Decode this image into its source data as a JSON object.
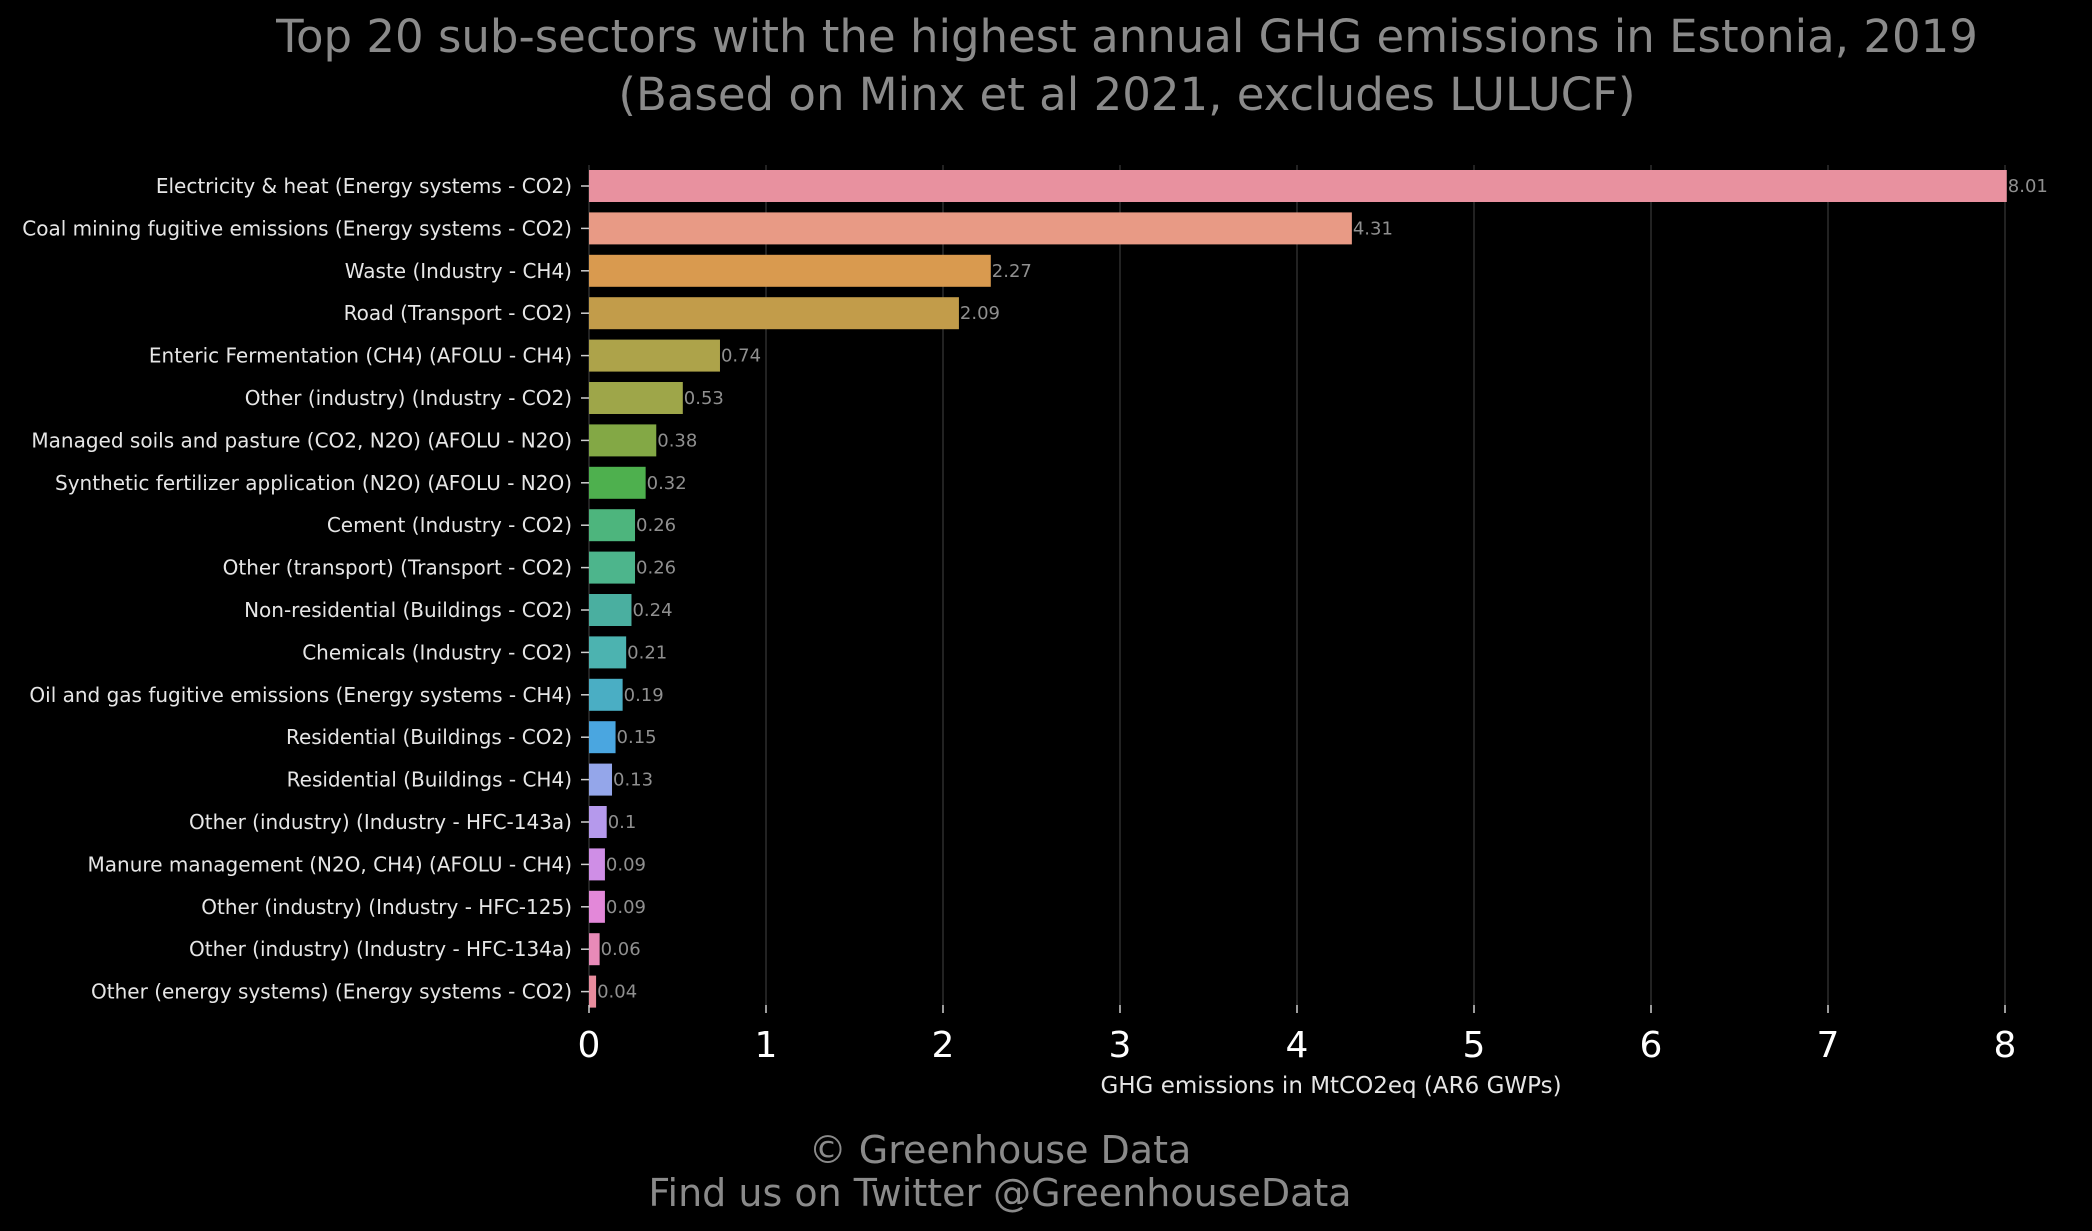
{
  "chart_data": {
    "type": "bar",
    "orientation": "horizontal",
    "title": "Top 20 sub-sectors with the highest annual GHG emissions in Estonia, 2019",
    "subtitle": "(Based on Minx et al 2021, excludes LULUCF)",
    "xlabel": "GHG emissions in MtCO2eq (AR6 GWPs)",
    "ylabel": "",
    "xlim": [
      0,
      8
    ],
    "xticks": [
      "0",
      "1",
      "2",
      "3",
      "4",
      "5",
      "6",
      "7",
      "8"
    ],
    "grid": "vertical",
    "categories": [
      "Electricity & heat (Energy systems - CO2)",
      "Coal mining fugitive emissions (Energy systems - CO2)",
      "Waste (Industry - CH4)",
      "Road (Transport - CO2)",
      "Enteric Fermentation (CH4) (AFOLU - CH4)",
      "Other (industry) (Industry - CO2)",
      "Managed soils and pasture (CO2, N2O) (AFOLU - N2O)",
      "Synthetic fertilizer application (N2O) (AFOLU - N2O)",
      "Cement (Industry - CO2)",
      "Other (transport) (Transport - CO2)",
      "Non-residential (Buildings - CO2)",
      "Chemicals (Industry - CO2)",
      "Oil and gas fugitive emissions (Energy systems - CH4)",
      "Residential (Buildings - CO2)",
      "Residential (Buildings - CH4)",
      "Other (industry) (Industry - HFC-143a)",
      "Manure management (N2O, CH4) (AFOLU - CH4)",
      "Other (industry) (Industry - HFC-125)",
      "Other (industry) (Industry - HFC-134a)",
      "Other (energy systems) (Energy systems - CO2)"
    ],
    "values": [
      8.01,
      4.31,
      2.27,
      2.09,
      0.74,
      0.53,
      0.38,
      0.32,
      0.26,
      0.26,
      0.24,
      0.21,
      0.19,
      0.15,
      0.13,
      0.1,
      0.09,
      0.09,
      0.06,
      0.04
    ],
    "value_labels": [
      "8.01",
      "4.31",
      "2.27",
      "2.09",
      "0.74",
      "0.53",
      "0.38",
      "0.32",
      "0.26",
      "0.26",
      "0.24",
      "0.21",
      "0.19",
      "0.15",
      "0.13",
      "0.1",
      "0.09",
      "0.09",
      "0.06",
      "0.04"
    ],
    "colors": [
      "#e8919f",
      "#e89a85",
      "#d99a4f",
      "#c29c4a",
      "#ada34a",
      "#9ea649",
      "#83a845",
      "#4eb04e",
      "#4db57d",
      "#4db58c",
      "#4aafa0",
      "#4cb3b0",
      "#4aaec4",
      "#4aa6e0",
      "#94a6ea",
      "#b599ec",
      "#cf8ee6",
      "#e388d9",
      "#e88ab8",
      "#e88c9d"
    ]
  },
  "footer": {
    "credit": "© Greenhouse Data",
    "twitter": "Find us on Twitter @GreenhouseData"
  }
}
